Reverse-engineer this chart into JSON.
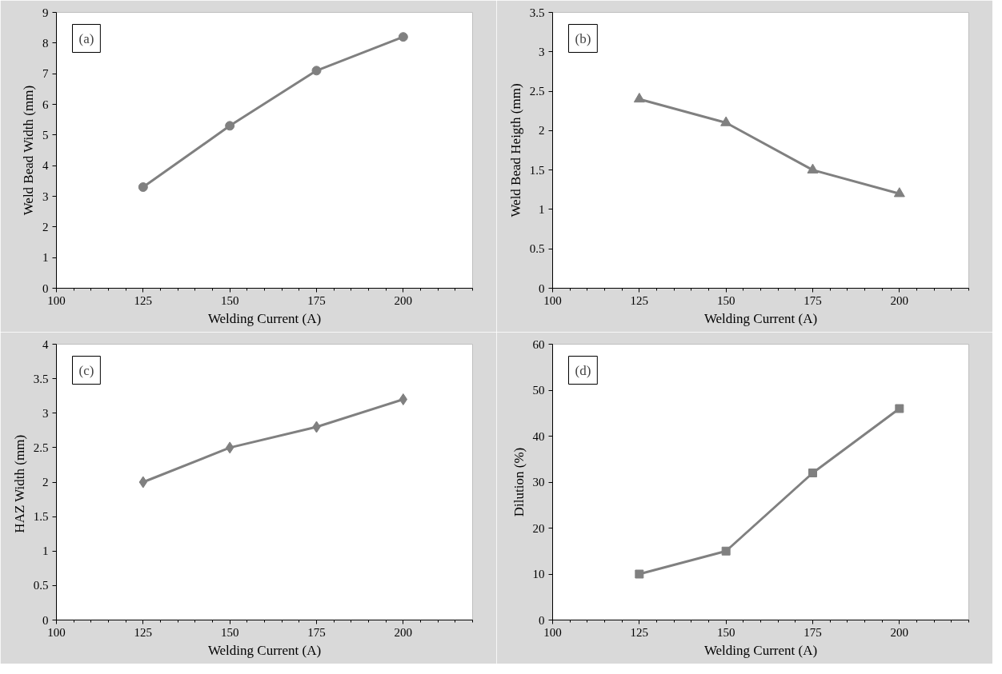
{
  "chart_data": [
    {
      "type": "line",
      "x": [
        125,
        150,
        175,
        200
      ],
      "values": [
        3.3,
        5.3,
        7.1,
        8.2
      ],
      "color": "#808080",
      "marker": "circle",
      "xlabel": "Welding Current (A)",
      "ylabel": "Weld Bead Width (mm)",
      "annotations": [
        "(a)"
      ],
      "xlim": [
        100,
        220
      ],
      "xticks": [
        100,
        125,
        150,
        175,
        200
      ],
      "ylim": [
        0,
        9
      ],
      "yticks": [
        0,
        1,
        2,
        3,
        4,
        5,
        6,
        7,
        8,
        9
      ],
      "grid": false
    },
    {
      "type": "line",
      "x": [
        125,
        150,
        175,
        200
      ],
      "values": [
        2.4,
        2.1,
        1.5,
        1.2
      ],
      "color": "#808080",
      "marker": "triangle",
      "xlabel": "Welding Current (A)",
      "ylabel": "Weld Bead Heigth (mm)",
      "annotations": [
        "(b)"
      ],
      "xlim": [
        100,
        220
      ],
      "xticks": [
        100,
        125,
        150,
        175,
        200
      ],
      "ylim": [
        0,
        3.5
      ],
      "yticks": [
        0,
        0.5,
        1,
        1.5,
        2,
        2.5,
        3,
        3.5
      ],
      "grid": false
    },
    {
      "type": "line",
      "x": [
        125,
        150,
        175,
        200
      ],
      "values": [
        2.0,
        2.5,
        2.8,
        3.2
      ],
      "color": "#808080",
      "marker": "diamond",
      "xlabel": "Welding Current (A)",
      "ylabel": "HAZ  Width (mm)",
      "annotations": [
        "(c)"
      ],
      "xlim": [
        100,
        220
      ],
      "xticks": [
        100,
        125,
        150,
        175,
        200
      ],
      "ylim": [
        0,
        4
      ],
      "yticks": [
        0,
        0.5,
        1,
        1.5,
        2,
        2.5,
        3,
        3.5,
        4
      ],
      "grid": false
    },
    {
      "type": "line",
      "x": [
        125,
        150,
        175,
        200
      ],
      "values": [
        10,
        15,
        32,
        46
      ],
      "color": "#808080",
      "marker": "square",
      "xlabel": "Welding Current (A)",
      "ylabel": "Dilution (%)",
      "annotations": [
        "(d)"
      ],
      "xlim": [
        100,
        220
      ],
      "xticks": [
        100,
        125,
        150,
        175,
        200
      ],
      "ylim": [
        0,
        60
      ],
      "yticks": [
        0,
        10,
        20,
        30,
        40,
        50,
        60
      ],
      "grid": false
    }
  ]
}
